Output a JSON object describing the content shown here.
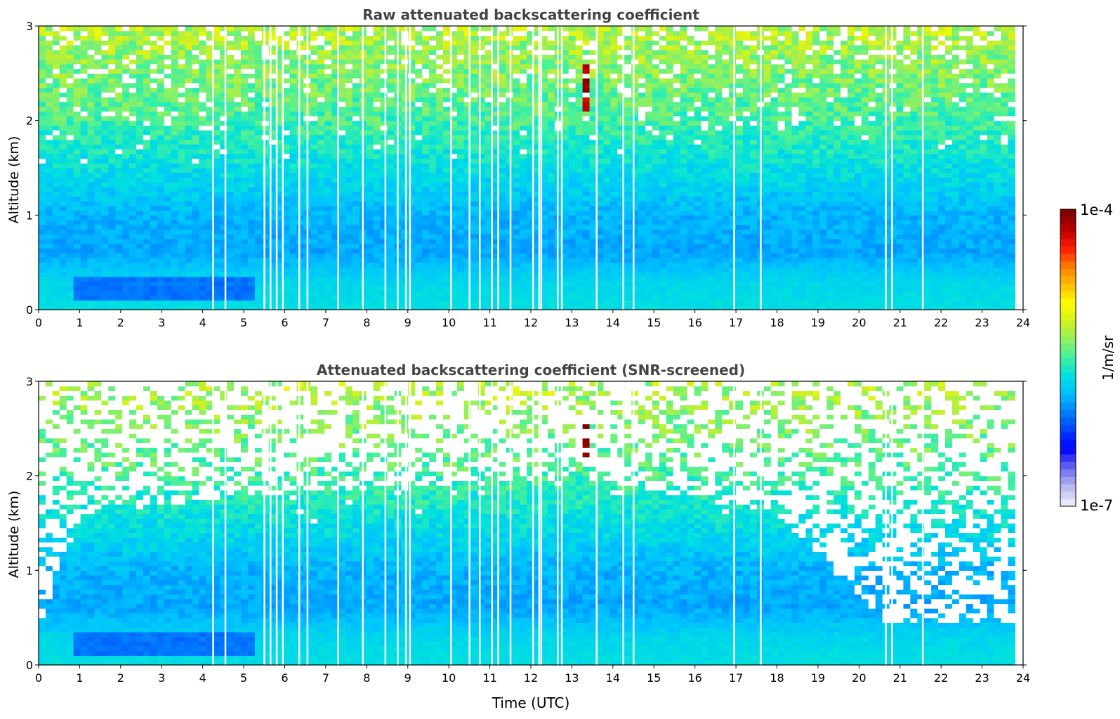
{
  "chart_data": [
    {
      "type": "heatmap",
      "title": "Raw attenuated backscattering coefficient",
      "xlabel": "",
      "ylabel": "Altitude (km)",
      "xlim": [
        0,
        24
      ],
      "ylim": [
        0,
        3
      ],
      "xticks": [
        "0",
        "1",
        "2",
        "3",
        "4",
        "5",
        "6",
        "7",
        "8",
        "9",
        "10",
        "11",
        "12",
        "13",
        "14",
        "15",
        "16",
        "17",
        "18",
        "19",
        "20",
        "21",
        "22",
        "23",
        "24"
      ],
      "yticks": [
        "0",
        "1",
        "2",
        "3"
      ],
      "data_end_time": 23.8,
      "value_profile": [
        {
          "altitude": 0.05,
          "log10_value": -5.7
        },
        {
          "altitude": 0.3,
          "log10_value": -5.75
        },
        {
          "altitude": 0.6,
          "log10_value": -5.95
        },
        {
          "altitude": 1.0,
          "log10_value": -5.9
        },
        {
          "altitude": 1.5,
          "log10_value": -5.7
        },
        {
          "altitude": 2.0,
          "log10_value": -5.5
        },
        {
          "altitude": 3.0,
          "log10_value": -5.2
        }
      ],
      "features": [
        {
          "name": "low dark layer",
          "time": [
            0.9,
            5.2
          ],
          "altitude": [
            0.08,
            0.35
          ],
          "log10_value": -6.1
        },
        {
          "name": "cloud",
          "time": [
            13.25,
            13.45
          ],
          "altitude": [
            2.1,
            2.6
          ],
          "log10_value": -4.1
        }
      ],
      "missing_profiles_time": [
        4.25,
        4.55,
        5.5,
        5.65,
        5.8,
        5.95,
        6.35,
        6.55,
        7.3,
        7.9,
        8.45,
        8.75,
        8.95,
        9.05,
        10.05,
        10.5,
        10.75,
        11.05,
        11.2,
        11.5,
        12.05,
        12.2,
        12.25,
        12.65,
        12.75,
        13.6,
        14.25,
        14.5,
        16.95,
        17.6,
        20.65,
        20.8,
        21.55
      ]
    },
    {
      "type": "heatmap",
      "title": "Attenuated backscattering coefficient (SNR-screened)",
      "xlabel": "Time (UTC)",
      "ylabel": "Altitude (km)",
      "xlim": [
        0,
        24
      ],
      "ylim": [
        0,
        3
      ],
      "xticks": [
        "0",
        "1",
        "2",
        "3",
        "4",
        "5",
        "6",
        "7",
        "8",
        "9",
        "10",
        "11",
        "12",
        "13",
        "14",
        "15",
        "16",
        "17",
        "18",
        "19",
        "20",
        "21",
        "22",
        "23",
        "24"
      ],
      "yticks": [
        "0",
        "1",
        "2",
        "3"
      ],
      "data_end_time": 23.8,
      "screened_top_altitude": [
        {
          "time": 0.0,
          "altitude": 0.4
        },
        {
          "time": 1.0,
          "altitude": 1.6
        },
        {
          "time": 5.0,
          "altitude": 1.8
        },
        {
          "time": 13.0,
          "altitude": 2.0
        },
        {
          "time": 18.0,
          "altitude": 1.6
        },
        {
          "time": 20.6,
          "altitude": 0.45
        },
        {
          "time": 23.8,
          "altitude": 0.45
        }
      ],
      "features": [
        {
          "name": "low dark layer",
          "time": [
            0.9,
            5.2
          ],
          "altitude": [
            0.08,
            0.35
          ],
          "log10_value": -6.1
        },
        {
          "name": "cloud",
          "time": [
            13.25,
            13.45
          ],
          "altitude": [
            2.1,
            2.6
          ],
          "log10_value": -4.1
        }
      ],
      "missing_profiles_time": [
        4.25,
        4.55,
        5.5,
        5.65,
        5.8,
        5.95,
        6.35,
        6.55,
        7.3,
        7.9,
        8.45,
        8.75,
        8.95,
        9.05,
        10.05,
        10.5,
        10.75,
        11.05,
        11.2,
        11.5,
        12.05,
        12.2,
        12.25,
        12.65,
        12.75,
        13.6,
        14.25,
        14.5,
        16.95,
        17.6,
        20.65,
        20.8,
        21.55
      ]
    }
  ],
  "colorbar": {
    "label": "1/m/sr",
    "max_label": "1e-4",
    "min_label": "1e-7",
    "scale": "log",
    "range": [
      1e-07,
      0.0001
    ],
    "colormap": [
      "#e8e8f8",
      "#b0b0ee",
      "#6060f0",
      "#0000ff",
      "#0040ff",
      "#0080ff",
      "#00c0ff",
      "#00e0e0",
      "#40f0a0",
      "#90f060",
      "#d0f020",
      "#ffff00",
      "#ffc000",
      "#ff8000",
      "#ff2000",
      "#c00000",
      "#800000"
    ]
  }
}
